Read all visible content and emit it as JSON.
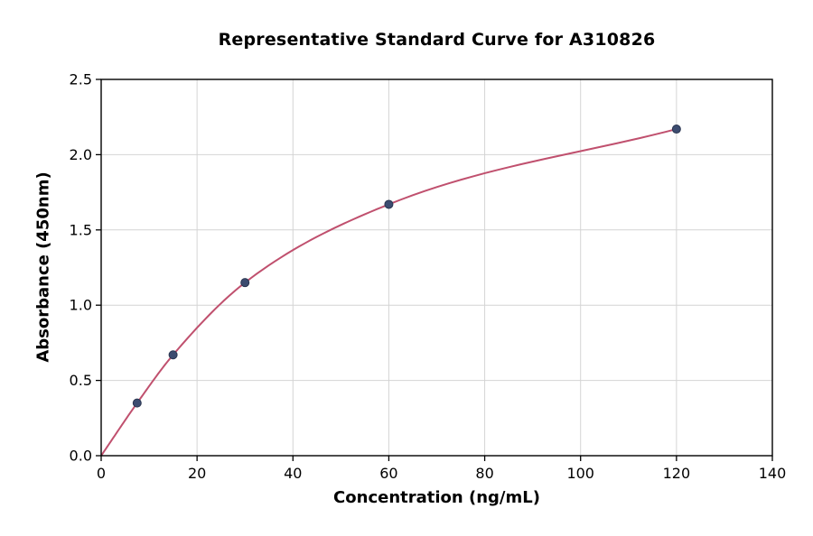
{
  "chart_data": {
    "type": "line",
    "title": "Representative Standard Curve for A310826",
    "xlabel": "Concentration (ng/mL)",
    "ylabel": "Absorbance (450nm)",
    "xlim": [
      0,
      140
    ],
    "ylim": [
      0,
      2.5
    ],
    "x_ticks": [
      0,
      20,
      40,
      60,
      80,
      100,
      120,
      140
    ],
    "x_tick_labels": [
      "0",
      "20",
      "40",
      "60",
      "80",
      "100",
      "120",
      "140"
    ],
    "y_ticks": [
      0,
      0.5,
      1,
      1.5,
      2,
      2.5
    ],
    "y_tick_labels": [
      "0.0",
      "0.5",
      "1.0",
      "1.5",
      "2.0",
      "2.5"
    ],
    "grid": true,
    "legend": "none",
    "points": [
      [
        7.5,
        0.35
      ],
      [
        15,
        0.67
      ],
      [
        30,
        1.15
      ],
      [
        60,
        1.67
      ],
      [
        120,
        2.17
      ]
    ],
    "curve_points": [
      [
        0,
        0
      ],
      [
        7.5,
        0.35
      ],
      [
        15,
        0.67
      ],
      [
        30,
        1.15
      ],
      [
        60,
        1.67
      ],
      [
        120,
        2.17
      ]
    ],
    "colors": {
      "curve": "#c0506e",
      "marker": "#3c4c70",
      "marker_edge": "#2a3550",
      "grid": "#d4d4d4",
      "axis": "#000000",
      "text": "#000000"
    }
  }
}
